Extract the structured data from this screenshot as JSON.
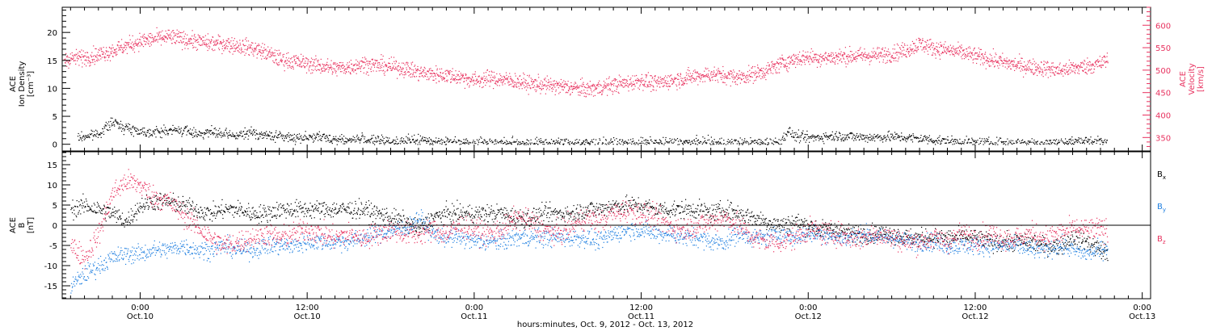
{
  "colors": {
    "density": "#000000",
    "velocity": "#e8325f",
    "bx": "#000000",
    "by": "#1f7fe0",
    "bz": "#e8325f",
    "axis": "#000000"
  },
  "chart_data": [
    {
      "type": "scatter",
      "panel": "plasma",
      "xlim_hours": [
        -5.6,
        72.6
      ],
      "ylabel_left": [
        "ACE",
        "Ion Density",
        "[cm⁻³]"
      ],
      "ylabel_right": [
        "ACE",
        "Velocity",
        "[km/s]"
      ],
      "ylim_left": [
        -1.2,
        24.5
      ],
      "ylim_right": [
        320,
        640
      ],
      "yticks_left": [
        "0",
        "5",
        "10",
        "15",
        "20"
      ],
      "yticks_left_values": [
        0,
        5,
        10,
        15,
        20
      ],
      "yticks_right": [
        "350",
        "400",
        "450",
        "500",
        "550",
        "600"
      ],
      "yticks_right_values": [
        350,
        400,
        450,
        500,
        550,
        600
      ],
      "series": [
        {
          "name": "",
          "axis": "left",
          "color_key": "density",
          "x": [
            -4.5,
            -3,
            -2,
            -1,
            0,
            1,
            2,
            3,
            4,
            5,
            6,
            7,
            8,
            9,
            10,
            11,
            12,
            13,
            14,
            15,
            16,
            17,
            18,
            19,
            20,
            22,
            24,
            26,
            28,
            30,
            32,
            34,
            36,
            38,
            40,
            42,
            44,
            46,
            46.5,
            47,
            48,
            50,
            52,
            54,
            56,
            58,
            60,
            62,
            64,
            66,
            68,
            69.5
          ],
          "y": [
            1.2,
            2,
            4,
            3,
            2.4,
            2.2,
            2.5,
            2.6,
            2,
            2.2,
            1.8,
            1.6,
            2.2,
            1.6,
            1.5,
            1.2,
            1.4,
            1.3,
            1.0,
            0.8,
            1.0,
            0.7,
            0.6,
            0.6,
            0.8,
            0.5,
            0.4,
            0.3,
            0.3,
            0.3,
            0.3,
            0.2,
            0.3,
            0.3,
            0.4,
            0.3,
            0.3,
            0.4,
            2.5,
            1.5,
            1.2,
            1.6,
            1.3,
            1.4,
            1.1,
            0.6,
            0.3,
            0.3,
            0.3,
            0.3,
            0.8,
            0.2
          ]
        },
        {
          "name": "",
          "axis": "right",
          "color_key": "velocity",
          "x": [
            -5.5,
            -4,
            -3,
            -2,
            -1,
            0,
            1,
            2,
            3,
            4,
            5,
            6,
            7,
            8,
            9,
            10,
            11,
            12,
            13,
            14,
            15,
            16,
            17,
            18,
            19,
            20,
            21,
            22,
            23,
            24,
            25,
            26,
            27,
            28,
            29,
            30,
            31,
            32,
            33,
            34,
            35,
            36,
            37,
            38,
            39,
            40,
            41,
            42,
            43,
            44,
            45,
            46,
            47,
            48,
            49,
            50,
            51,
            52,
            53,
            54,
            55,
            56,
            57,
            58,
            59,
            60,
            61,
            62,
            63,
            64,
            65,
            66,
            67,
            68,
            69,
            69.5
          ],
          "y": [
            525,
            530,
            535,
            545,
            555,
            565,
            570,
            575,
            570,
            565,
            560,
            560,
            555,
            550,
            540,
            525,
            520,
            515,
            510,
            505,
            508,
            515,
            512,
            508,
            505,
            495,
            492,
            490,
            485,
            478,
            482,
            480,
            476,
            470,
            468,
            465,
            462,
            458,
            462,
            468,
            472,
            478,
            470,
            478,
            482,
            488,
            492,
            488,
            485,
            492,
            500,
            515,
            525,
            530,
            528,
            530,
            532,
            533,
            534,
            538,
            545,
            560,
            550,
            545,
            540,
            532,
            525,
            518,
            512,
            508,
            505,
            500,
            505,
            510,
            515,
            525
          ]
        }
      ]
    },
    {
      "type": "scatter",
      "panel": "magnetic",
      "xlim_hours": [
        -5.6,
        72.6
      ],
      "ylabel_left": [
        "ACE",
        "B",
        "[nT]"
      ],
      "ylim": [
        -18.2,
        18.2
      ],
      "yticks": [
        "-15",
        "-10",
        "-5",
        "0",
        "5",
        "10",
        "15"
      ],
      "yticks_values": [
        -15,
        -10,
        -5,
        0,
        5,
        10,
        15
      ],
      "zero_line": true,
      "legend": [
        "Bx",
        "By",
        "Bz"
      ],
      "legend_placement": "right",
      "xticks_time": [
        "0:00",
        "12:00",
        "0:00",
        "12:00",
        "0:00",
        "12:00",
        "0:00"
      ],
      "xticks_date": [
        "Oct.10",
        "Oct.10",
        "Oct.11",
        "Oct.11",
        "Oct.12",
        "Oct.12",
        "Oct.13"
      ],
      "xticks_hours": [
        0,
        12,
        24,
        36,
        48,
        60,
        72
      ],
      "xlabel": "hours:minutes, Oct.  9, 2012 - Oct. 13, 2012",
      "series": [
        {
          "name": "Bx",
          "color_key": "bx",
          "x": [
            -5,
            -4,
            -3,
            -2,
            -1,
            0,
            1,
            2,
            3,
            4,
            5,
            6,
            7,
            8,
            9,
            10,
            11,
            12,
            13,
            14,
            15,
            16,
            17,
            18,
            19,
            20,
            21,
            22,
            23,
            24,
            25,
            26,
            27,
            28,
            29,
            30,
            31,
            32,
            33,
            34,
            35,
            36,
            37,
            38,
            39,
            40,
            41,
            42,
            43,
            44,
            45,
            46,
            47,
            48,
            49,
            50,
            51,
            52,
            53,
            54,
            55,
            56,
            57,
            58,
            59,
            60,
            61,
            62,
            63,
            64,
            65,
            66,
            67,
            68,
            69,
            69.5
          ],
          "y": [
            4,
            5,
            4,
            3,
            1,
            5,
            6,
            6,
            5,
            4,
            3,
            4,
            4,
            3,
            3,
            4,
            4,
            4,
            4,
            4,
            4,
            4,
            3,
            2,
            1,
            -1,
            2,
            3,
            3,
            3,
            3,
            3,
            2,
            2,
            3,
            3,
            3,
            4,
            4,
            5,
            5,
            5,
            4,
            4,
            4,
            4,
            3,
            4,
            3,
            2,
            1,
            0,
            1,
            0,
            -1,
            -1,
            -2,
            -2,
            -2,
            -2,
            -3,
            -3,
            -3,
            -3,
            -3,
            -3,
            -4,
            -4,
            -4,
            -4,
            -5,
            -5,
            -3,
            -4,
            -6,
            -7
          ]
        },
        {
          "name": "By",
          "color_key": "by",
          "x": [
            -5,
            -4,
            -3,
            -2,
            -1,
            0,
            1,
            2,
            3,
            4,
            5,
            6,
            7,
            8,
            9,
            10,
            11,
            12,
            13,
            14,
            15,
            16,
            17,
            18,
            19,
            20,
            21,
            22,
            23,
            24,
            25,
            26,
            27,
            28,
            29,
            30,
            31,
            32,
            33,
            34,
            35,
            36,
            37,
            38,
            39,
            40,
            41,
            42,
            43,
            44,
            45,
            46,
            47,
            48,
            49,
            50,
            51,
            52,
            53,
            54,
            55,
            56,
            57,
            58,
            59,
            60,
            61,
            62,
            63,
            64,
            65,
            66,
            67,
            68,
            69,
            69.5
          ],
          "y": [
            -15,
            -12,
            -10,
            -8,
            -7,
            -7,
            -6,
            -6,
            -5,
            -6,
            -6,
            -5,
            -6,
            -6,
            -5,
            -5,
            -5,
            -4,
            -4,
            -4,
            -4,
            -3,
            -2,
            -1,
            -1,
            2,
            -2,
            -3,
            -3,
            -4,
            -4,
            -4,
            -3,
            -3,
            -3,
            -3,
            -3,
            -3,
            -4,
            -2,
            -1,
            -1,
            -2,
            -2,
            -3,
            -3,
            -4,
            -4,
            -2,
            -3,
            -3,
            -2,
            -3,
            -2,
            -2,
            -3,
            -3,
            -2,
            -3,
            -3,
            -4,
            -4,
            -4,
            -5,
            -5,
            -5,
            -5,
            -5,
            -5,
            -6,
            -6,
            -5,
            -6,
            -7,
            -6,
            -5
          ]
        },
        {
          "name": "Bz",
          "color_key": "bz",
          "x": [
            -5,
            -4,
            -3,
            -2,
            -1,
            0,
            1,
            2,
            3,
            4,
            5,
            6,
            7,
            8,
            9,
            10,
            11,
            12,
            13,
            14,
            15,
            16,
            17,
            18,
            19,
            20,
            21,
            22,
            23,
            24,
            25,
            26,
            27,
            28,
            29,
            30,
            31,
            32,
            33,
            34,
            35,
            36,
            37,
            38,
            39,
            40,
            41,
            42,
            43,
            44,
            45,
            46,
            47,
            48,
            49,
            50,
            51,
            52,
            53,
            54,
            55,
            56,
            57,
            58,
            59,
            60,
            61,
            62,
            63,
            64,
            65,
            66,
            67,
            68,
            69,
            69.5
          ],
          "y": [
            -5,
            -8,
            -2,
            8,
            11,
            10,
            7,
            6,
            3,
            0,
            -3,
            -5,
            -4,
            -3,
            -2,
            -3,
            -2,
            -1,
            -2,
            -3,
            -2,
            -3,
            -2,
            -1,
            -2,
            -2,
            -1,
            -2,
            0,
            -1,
            -2,
            -1,
            2,
            1,
            -1,
            -2,
            0,
            2,
            1,
            3,
            4,
            3,
            2,
            0,
            -1,
            0,
            1,
            2,
            0,
            -3,
            -4,
            -4,
            -3,
            -1,
            -2,
            -2,
            -3,
            -3,
            -2,
            -3,
            -4,
            -4,
            -3,
            -4,
            -2,
            -3,
            -2,
            -3,
            -3,
            -2,
            -3,
            -2,
            -1,
            -1,
            -1,
            -1
          ]
        }
      ]
    }
  ]
}
